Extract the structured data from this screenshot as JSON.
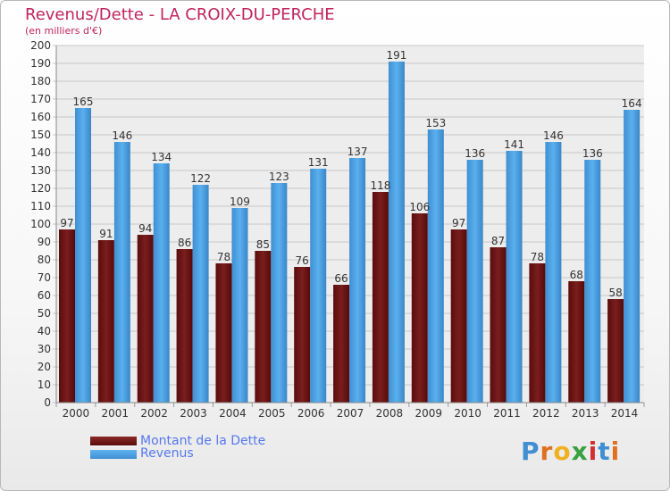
{
  "title": "Revenus/Dette - LA CROIX-DU-PERCHE",
  "subtitle": "(en milliers d'€)",
  "logo": {
    "text": "Proxiti",
    "colors": [
      "#3f8fd2",
      "#e07020",
      "#f0b020",
      "#3aa040",
      "#d03030",
      "#3f8fd2",
      "#e07020"
    ]
  },
  "colors": {
    "debt": "#6e1414",
    "revenue": "#4a9fe0",
    "title": "#c0245c",
    "legend_text": "#5577ee"
  },
  "chart_data": {
    "type": "bar",
    "categories": [
      "2000",
      "2001",
      "2002",
      "2003",
      "2004",
      "2005",
      "2006",
      "2007",
      "2008",
      "2009",
      "2010",
      "2011",
      "2012",
      "2013",
      "2014"
    ],
    "series": [
      {
        "name": "Montant de la Dette",
        "values": [
          97,
          91,
          94,
          86,
          78,
          85,
          76,
          66,
          118,
          106,
          97,
          87,
          78,
          68,
          58
        ]
      },
      {
        "name": "Revenus",
        "values": [
          165,
          146,
          134,
          122,
          109,
          123,
          131,
          137,
          191,
          153,
          136,
          141,
          146,
          136,
          164
        ]
      }
    ],
    "ylim": [
      0,
      200
    ],
    "yticks": [
      0,
      10,
      20,
      30,
      40,
      50,
      60,
      70,
      80,
      90,
      100,
      110,
      120,
      130,
      140,
      150,
      160,
      170,
      180,
      190,
      200
    ],
    "grid": true,
    "legend": "bottom-left"
  }
}
